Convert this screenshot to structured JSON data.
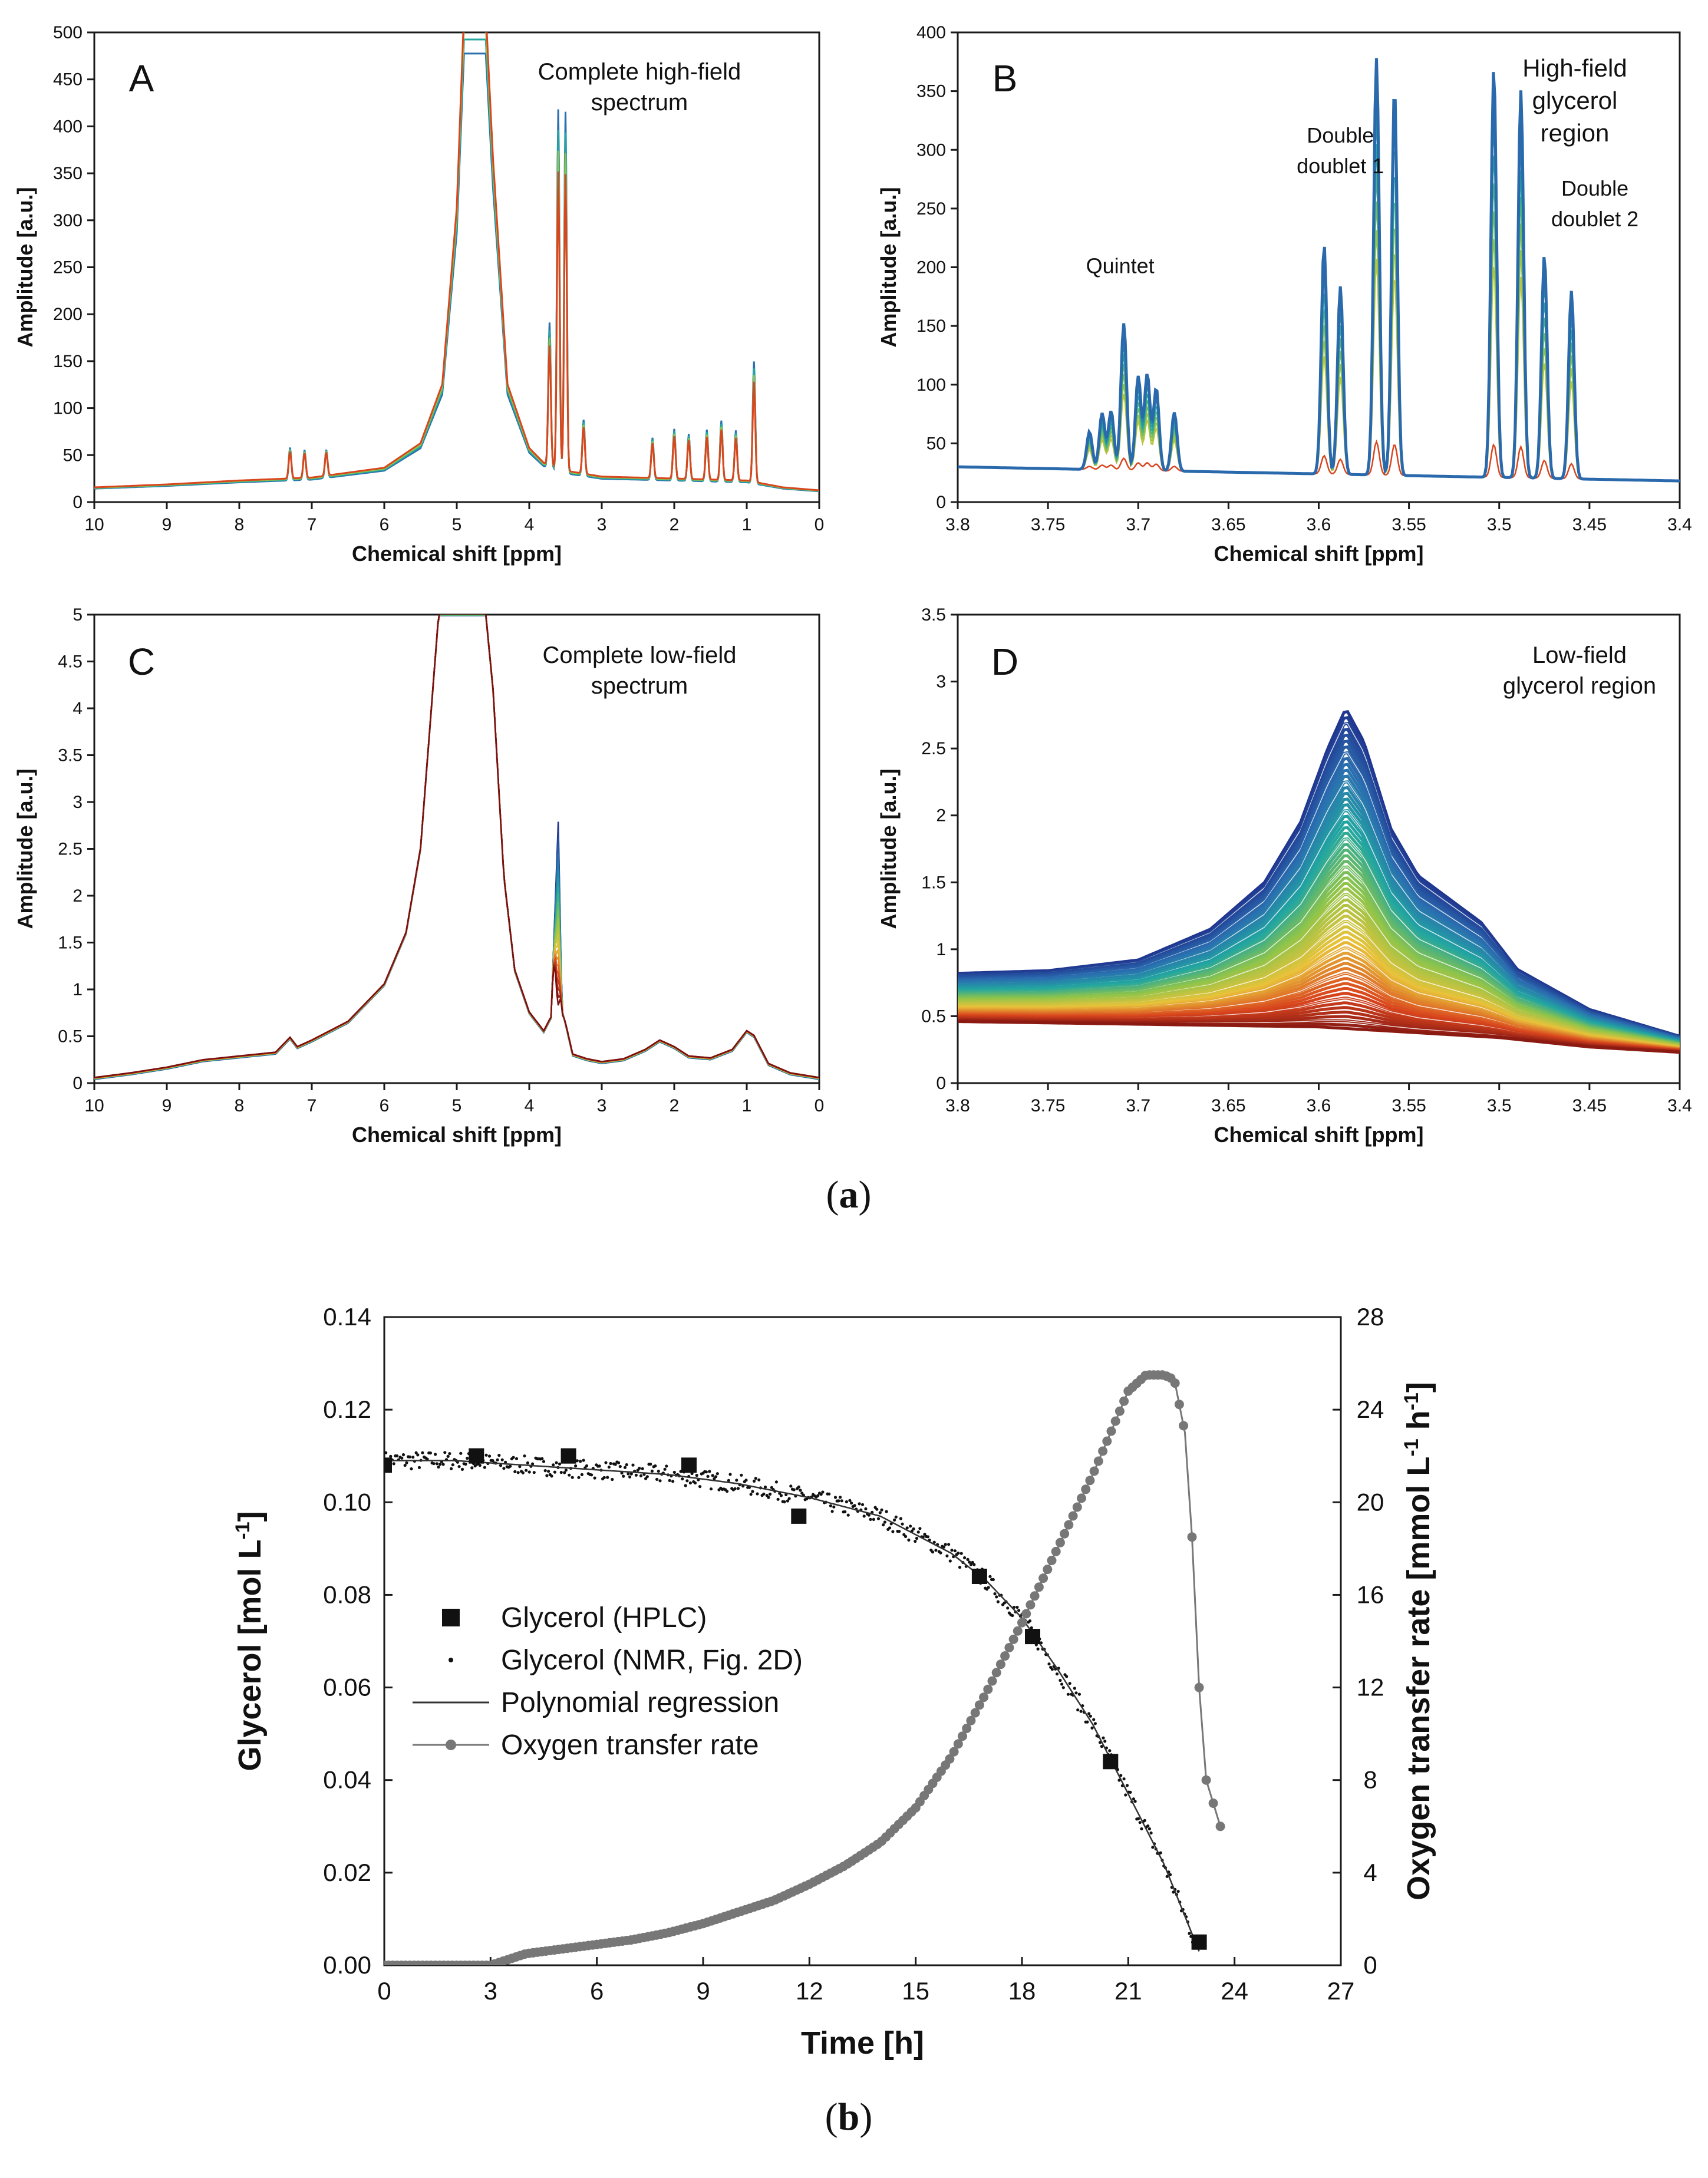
{
  "figure": {
    "caption_a": "a",
    "caption_b": "b"
  },
  "colors": {
    "axis": "#1a1a1a",
    "spectrum_blue": "#2a6fb0",
    "spectrum_teal": "#22a6a0",
    "spectrum_green": "#8fc44a",
    "spectrum_red": "#d9461e",
    "spectrum_darkred": "#7a1010",
    "spectrum_navy": "#1f2f8c",
    "hplc": "#111111",
    "otr": "#777777"
  },
  "chart_data": [
    {
      "id": "A",
      "type": "line",
      "panel_letter": "A",
      "annotation": [
        "Complete high-field",
        "spectrum"
      ],
      "xlabel": "Chemical shift  [ppm]",
      "ylabel": "Amplitude  [a.u.]",
      "xlim": [
        10,
        0
      ],
      "ylim": [
        0,
        500
      ],
      "x_ticks": [
        10,
        9,
        8,
        7,
        6,
        5,
        4,
        3,
        2,
        1,
        0
      ],
      "y_ticks": [
        0,
        50,
        100,
        150,
        200,
        250,
        300,
        350,
        400,
        450,
        500
      ],
      "baseline": [
        [
          10,
          15
        ],
        [
          9,
          18
        ],
        [
          8,
          22
        ],
        [
          7,
          25
        ],
        [
          6,
          35
        ],
        [
          5.5,
          60
        ],
        [
          5.2,
          120
        ],
        [
          5.0,
          300
        ],
        [
          4.9,
          500
        ],
        [
          4.6,
          500
        ],
        [
          4.5,
          350
        ],
        [
          4.3,
          120
        ],
        [
          4.0,
          55
        ],
        [
          3.8,
          40
        ],
        [
          3.5,
          32
        ],
        [
          3.0,
          26
        ],
        [
          2.0,
          24
        ],
        [
          1.0,
          22
        ],
        [
          0.5,
          15
        ],
        [
          0,
          12
        ]
      ],
      "peaks": [
        {
          "x": 7.3,
          "y": 35
        },
        {
          "x": 7.1,
          "y": 32
        },
        {
          "x": 6.8,
          "y": 30
        },
        {
          "x": 3.72,
          "y": 155
        },
        {
          "x": 3.6,
          "y": 385
        },
        {
          "x": 3.5,
          "y": 385
        },
        {
          "x": 3.25,
          "y": 60
        },
        {
          "x": 2.3,
          "y": 45
        },
        {
          "x": 2.0,
          "y": 55
        },
        {
          "x": 1.8,
          "y": 50
        },
        {
          "x": 1.55,
          "y": 55
        },
        {
          "x": 1.35,
          "y": 65
        },
        {
          "x": 1.15,
          "y": 55
        },
        {
          "x": 0.9,
          "y": 130
        }
      ]
    },
    {
      "id": "B",
      "type": "line",
      "panel_letter": "B",
      "annotation": [
        "High-field",
        "glycerol",
        "region"
      ],
      "peak_labels": [
        {
          "text": [
            "Quintet"
          ],
          "x": 3.71,
          "y": 195
        },
        {
          "text": [
            "Double",
            "doublet 1"
          ],
          "x": 3.588,
          "y": 280
        },
        {
          "text": [
            "Double",
            "doublet 2"
          ],
          "x": 3.447,
          "y": 235
        }
      ],
      "xlabel": "Chemical shift  [ppm]",
      "ylabel": "Amplitude  [a.u.]",
      "xlim": [
        3.8,
        3.4
      ],
      "ylim": [
        0,
        400
      ],
      "x_ticks": [
        3.8,
        3.75,
        3.7,
        3.65,
        3.6,
        3.55,
        3.5,
        3.45,
        3.4
      ],
      "y_ticks": [
        0,
        50,
        100,
        150,
        200,
        250,
        300,
        350,
        400
      ],
      "baseline_start": 30,
      "baseline_end": 18,
      "peaks_max": [
        [
          3.727,
          62
        ],
        [
          3.72,
          78
        ],
        [
          3.715,
          80
        ],
        [
          3.708,
          155
        ],
        [
          3.7,
          110
        ],
        [
          3.695,
          112
        ],
        [
          3.69,
          100
        ],
        [
          3.68,
          80
        ],
        [
          3.597,
          225
        ],
        [
          3.588,
          190
        ],
        [
          3.568,
          385
        ],
        [
          3.558,
          360
        ],
        [
          3.503,
          378
        ],
        [
          3.488,
          360
        ],
        [
          3.475,
          220
        ],
        [
          3.46,
          190
        ]
      ]
    },
    {
      "id": "C",
      "type": "line",
      "panel_letter": "C",
      "annotation": [
        "Complete low-field",
        "spectrum"
      ],
      "xlabel": "Chemical shift  [ppm]",
      "ylabel": "Amplitude  [a.u.]",
      "xlim": [
        10,
        0
      ],
      "ylim": [
        0,
        5
      ],
      "x_ticks": [
        10,
        9,
        8,
        7,
        6,
        5,
        4,
        3,
        2,
        1,
        0
      ],
      "y_ticks": [
        0,
        0.5,
        1,
        1.5,
        2,
        2.5,
        3,
        3.5,
        4,
        4.5,
        5
      ],
      "y_tick_labels": [
        "0",
        "0.5",
        "1",
        "1.5",
        "2",
        "2.5",
        "3",
        "3.5",
        "4",
        "4.5",
        "5"
      ],
      "curve": [
        [
          10,
          0.05
        ],
        [
          9.5,
          0.1
        ],
        [
          9,
          0.16
        ],
        [
          8.5,
          0.24
        ],
        [
          8,
          0.28
        ],
        [
          7.5,
          0.32
        ],
        [
          7.3,
          0.48
        ],
        [
          7.2,
          0.38
        ],
        [
          7,
          0.45
        ],
        [
          6.5,
          0.65
        ],
        [
          6,
          1.05
        ],
        [
          5.7,
          1.6
        ],
        [
          5.5,
          2.5
        ],
        [
          5.35,
          4.0
        ],
        [
          5.25,
          5.0
        ],
        [
          4.6,
          5.0
        ],
        [
          4.5,
          4.2
        ],
        [
          4.35,
          2.2
        ],
        [
          4.2,
          1.2
        ],
        [
          4.0,
          0.75
        ],
        [
          3.8,
          0.55
        ],
        [
          3.7,
          0.7
        ],
        [
          3.6,
          2.8
        ],
        [
          3.55,
          0.8
        ],
        [
          3.4,
          0.3
        ],
        [
          3.2,
          0.25
        ],
        [
          3.0,
          0.22
        ],
        [
          2.7,
          0.25
        ],
        [
          2.4,
          0.35
        ],
        [
          2.2,
          0.45
        ],
        [
          2.0,
          0.38
        ],
        [
          1.8,
          0.28
        ],
        [
          1.5,
          0.26
        ],
        [
          1.2,
          0.35
        ],
        [
          1.0,
          0.55
        ],
        [
          0.9,
          0.5
        ],
        [
          0.7,
          0.2
        ],
        [
          0.4,
          0.1
        ],
        [
          0,
          0.05
        ]
      ]
    },
    {
      "id": "D",
      "type": "line",
      "panel_letter": "D",
      "annotation": [
        "Low-field",
        "glycerol region"
      ],
      "xlabel": "Chemical shift  [ppm]",
      "ylabel": "Amplitude  [a.u.]",
      "xlim": [
        3.8,
        3.4
      ],
      "ylim": [
        0,
        3.5
      ],
      "x_ticks": [
        3.8,
        3.75,
        3.7,
        3.65,
        3.6,
        3.55,
        3.5,
        3.45,
        3.4
      ],
      "y_ticks": [
        0,
        0.5,
        1,
        1.5,
        2,
        2.5,
        3,
        3.5
      ],
      "y_tick_labels": [
        "0",
        "0.5",
        "1",
        "1.5",
        "2",
        "2.5",
        "3",
        "3.5"
      ],
      "top_curve": [
        [
          3.8,
          0.82
        ],
        [
          3.75,
          0.84
        ],
        [
          3.7,
          0.92
        ],
        [
          3.66,
          1.15
        ],
        [
          3.63,
          1.5
        ],
        [
          3.61,
          1.95
        ],
        [
          3.595,
          2.5
        ],
        [
          3.585,
          2.8
        ],
        [
          3.575,
          2.55
        ],
        [
          3.56,
          1.9
        ],
        [
          3.545,
          1.55
        ],
        [
          3.525,
          1.35
        ],
        [
          3.51,
          1.2
        ],
        [
          3.49,
          0.85
        ],
        [
          3.45,
          0.55
        ],
        [
          3.4,
          0.35
        ]
      ],
      "bottom_curve": [
        [
          3.8,
          0.46
        ],
        [
          3.7,
          0.44
        ],
        [
          3.6,
          0.42
        ],
        [
          3.5,
          0.34
        ],
        [
          3.45,
          0.27
        ],
        [
          3.4,
          0.23
        ]
      ],
      "n_traces": 60
    },
    {
      "id": "b",
      "type": "scatter",
      "xlabel": "Time   [h]",
      "ylabel_left": "Glycerol   [mol L",
      "ylabel_left_sup": "-1",
      "ylabel_left_end": "]",
      "ylabel_right": "Oxygen transfer rate   [mmol L",
      "ylabel_right_sup1": "-1",
      "ylabel_right_mid": " h",
      "ylabel_right_sup2": "-1",
      "ylabel_right_end": "]",
      "xlim": [
        0,
        27
      ],
      "ylim_left": [
        0,
        0.14
      ],
      "ylim_right": [
        0,
        28
      ],
      "x_ticks": [
        0,
        3,
        6,
        9,
        12,
        15,
        18,
        21,
        24,
        27
      ],
      "y_ticks_left": [
        0.0,
        0.02,
        0.04,
        0.06,
        0.08,
        0.1,
        0.12,
        0.14
      ],
      "y_tick_labels_left": [
        "0.00",
        "0.02",
        "0.04",
        "0.06",
        "0.08",
        "0.10",
        "0.12",
        "0.14"
      ],
      "y_ticks_right": [
        0,
        4,
        8,
        12,
        16,
        20,
        24,
        28
      ],
      "legend": [
        {
          "label": "Glycerol (HPLC)",
          "marker": "square"
        },
        {
          "label": "Glycerol (NMR, Fig. 2D)",
          "marker": "dot"
        },
        {
          "label": "Polynomial regression",
          "marker": "line"
        },
        {
          "label": "Oxygen transfer rate",
          "marker": "line-circle"
        }
      ],
      "legend_position": "center-left",
      "series": [
        {
          "name": "Glycerol (HPLC)",
          "axis": "left",
          "points": [
            [
              0,
              0.108
            ],
            [
              2.6,
              0.11
            ],
            [
              5.2,
              0.11
            ],
            [
              8.6,
              0.108
            ],
            [
              11.7,
              0.097
            ],
            [
              16.8,
              0.084
            ],
            [
              18.3,
              0.071
            ],
            [
              20.5,
              0.044
            ],
            [
              23.0,
              0.005
            ]
          ]
        },
        {
          "name": "Polynomial regression",
          "axis": "left",
          "points": [
            [
              0,
              0.109
            ],
            [
              2,
              0.109
            ],
            [
              4,
              0.108
            ],
            [
              6,
              0.107
            ],
            [
              8,
              0.106
            ],
            [
              10,
              0.104
            ],
            [
              12,
              0.101
            ],
            [
              14,
              0.097
            ],
            [
              16,
              0.089
            ],
            [
              17,
              0.083
            ],
            [
              18,
              0.075
            ],
            [
              19,
              0.064
            ],
            [
              20,
              0.052
            ],
            [
              21,
              0.037
            ],
            [
              22,
              0.022
            ],
            [
              23,
              0.003
            ]
          ]
        },
        {
          "name": "Oxygen transfer rate",
          "axis": "right",
          "points": [
            [
              0,
              0
            ],
            [
              1,
              0
            ],
            [
              3,
              0
            ],
            [
              4,
              0.5
            ],
            [
              5,
              0.7
            ],
            [
              6,
              0.9
            ],
            [
              7,
              1.1
            ],
            [
              8,
              1.4
            ],
            [
              9,
              1.8
            ],
            [
              10,
              2.3
            ],
            [
              11,
              2.8
            ],
            [
              12,
              3.5
            ],
            [
              13,
              4.3
            ],
            [
              14,
              5.3
            ],
            [
              15,
              6.8
            ],
            [
              16,
              9.0
            ],
            [
              17,
              11.8
            ],
            [
              18,
              14.8
            ],
            [
              19,
              18.0
            ],
            [
              20,
              21.2
            ],
            [
              20.5,
              23.0
            ],
            [
              21,
              24.8
            ],
            [
              21.5,
              25.5
            ],
            [
              22,
              25.5
            ],
            [
              22.3,
              25.3
            ],
            [
              22.6,
              23.0
            ],
            [
              22.8,
              18.5
            ],
            [
              23.0,
              12.0
            ],
            [
              23.2,
              8.0
            ],
            [
              23.4,
              7.0
            ],
            [
              23.6,
              6.0
            ]
          ]
        }
      ]
    }
  ]
}
